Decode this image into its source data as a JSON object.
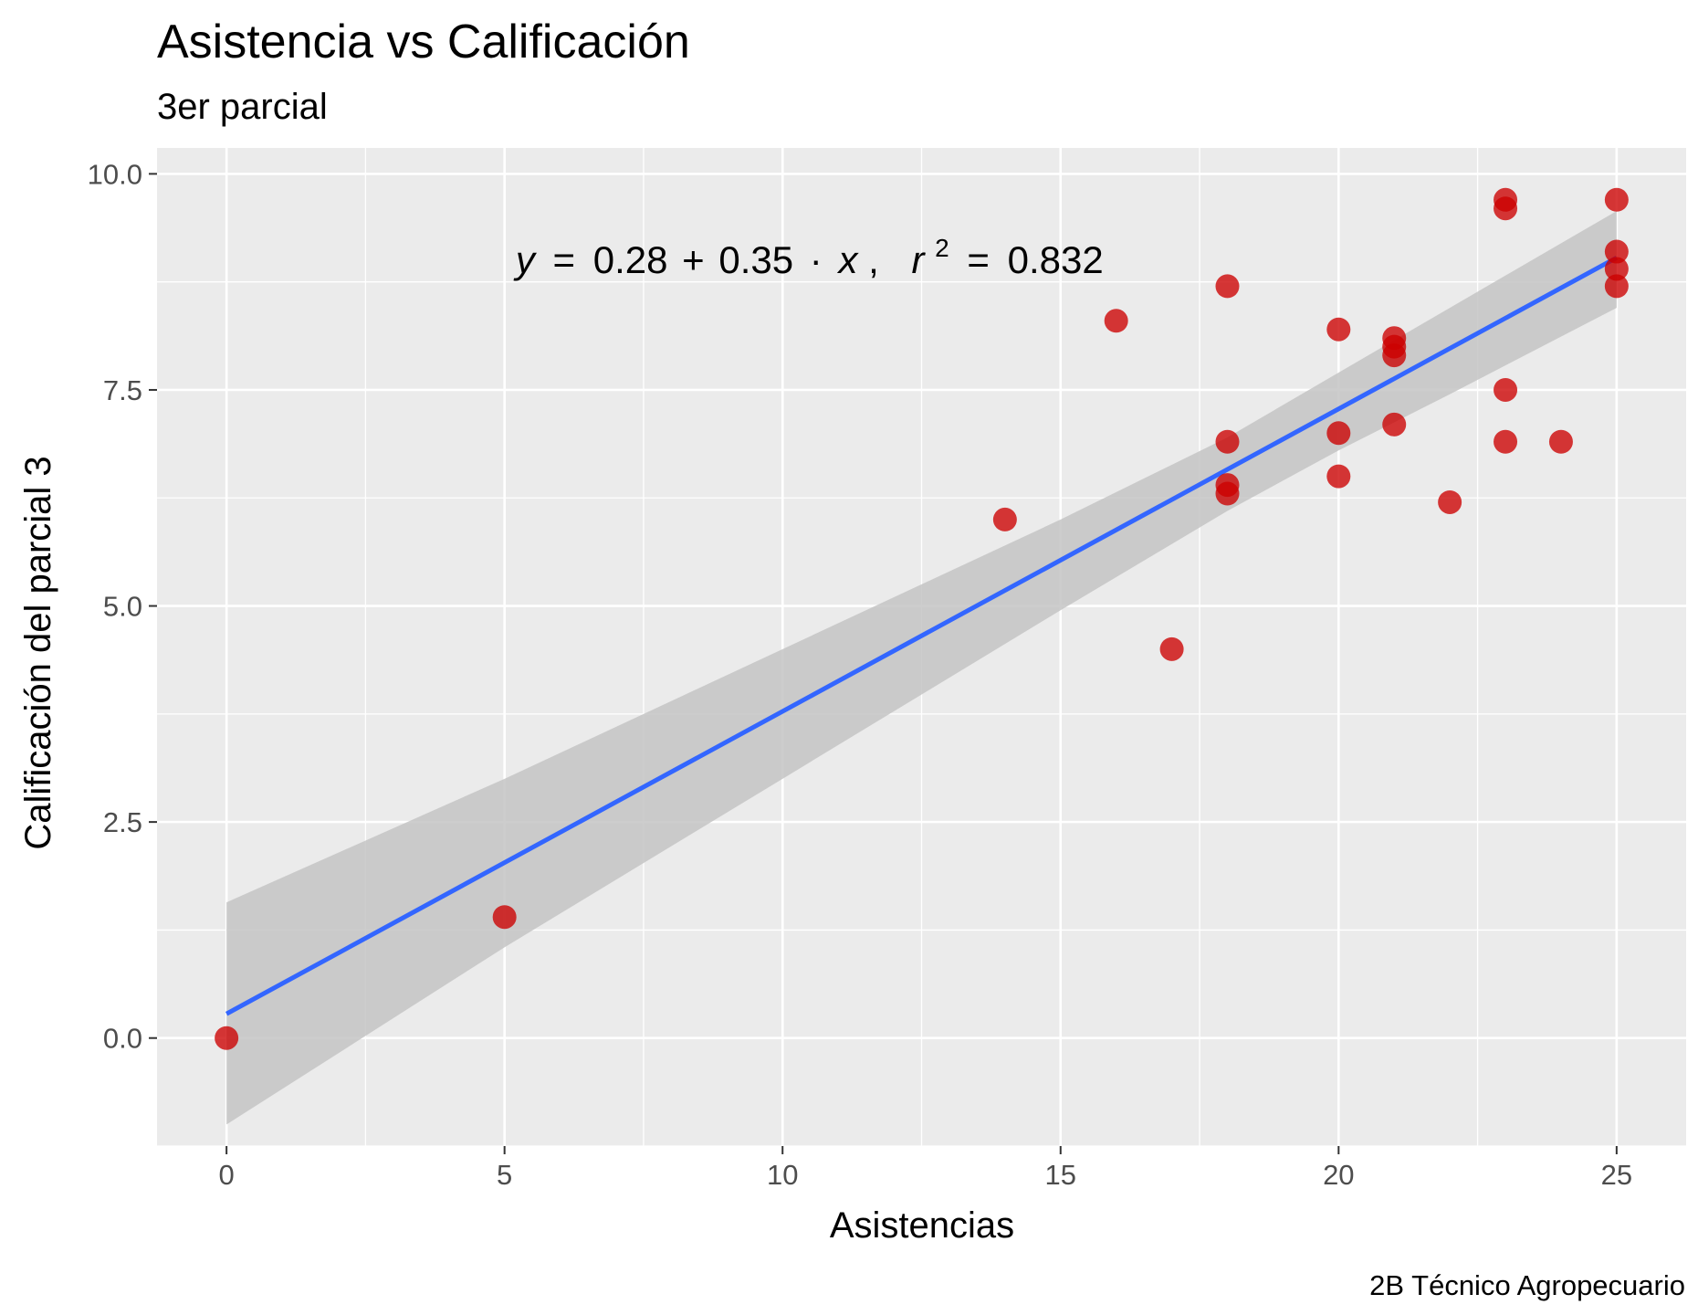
{
  "chart_data": {
    "type": "scatter",
    "title": "Asistencia vs Calificación",
    "subtitle": "3er parcial",
    "xlabel": "Asistencias",
    "ylabel": "Calificación del parcial 3",
    "caption": "2B Técnico Agropecuario",
    "xlim": [
      -1.25,
      26.25
    ],
    "ylim": [
      -1.25,
      10.3
    ],
    "x_ticks": [
      0,
      5,
      10,
      15,
      20,
      25
    ],
    "x_tick_labels": [
      "0",
      "5",
      "10",
      "15",
      "20",
      "25"
    ],
    "y_ticks": [
      0,
      2.5,
      5,
      7.5,
      10
    ],
    "y_tick_labels": [
      "0.0",
      "2.5",
      "5.0",
      "7.5",
      "10.0"
    ],
    "grid": true,
    "points": [
      {
        "x": 0,
        "y": 0.0
      },
      {
        "x": 5,
        "y": 1.4
      },
      {
        "x": 14,
        "y": 6.0
      },
      {
        "x": 16,
        "y": 8.3
      },
      {
        "x": 17,
        "y": 4.5
      },
      {
        "x": 18,
        "y": 8.7
      },
      {
        "x": 18,
        "y": 6.9
      },
      {
        "x": 18,
        "y": 6.4
      },
      {
        "x": 18,
        "y": 6.3
      },
      {
        "x": 20,
        "y": 8.2
      },
      {
        "x": 20,
        "y": 7.0
      },
      {
        "x": 20,
        "y": 6.5
      },
      {
        "x": 21,
        "y": 8.1
      },
      {
        "x": 21,
        "y": 8.0
      },
      {
        "x": 21,
        "y": 7.9
      },
      {
        "x": 21,
        "y": 7.1
      },
      {
        "x": 22,
        "y": 6.2
      },
      {
        "x": 23,
        "y": 9.7
      },
      {
        "x": 23,
        "y": 9.6
      },
      {
        "x": 23,
        "y": 7.5
      },
      {
        "x": 23,
        "y": 6.9
      },
      {
        "x": 24,
        "y": 6.9
      },
      {
        "x": 25,
        "y": 9.7
      },
      {
        "x": 25,
        "y": 9.1
      },
      {
        "x": 25,
        "y": 8.9
      },
      {
        "x": 25,
        "y": 8.7
      }
    ],
    "regression": {
      "intercept": 0.28,
      "slope": 0.35,
      "r2": 0.832,
      "x_range": [
        0,
        25
      ],
      "ci_band": [
        {
          "x": 0,
          "lo": -1.0,
          "hi": 1.57
        },
        {
          "x": 5,
          "lo": 1.05,
          "hi": 3.0
        },
        {
          "x": 10,
          "lo": 3.0,
          "hi": 4.5
        },
        {
          "x": 15,
          "lo": 4.95,
          "hi": 6.0
        },
        {
          "x": 18,
          "lo": 6.1,
          "hi": 6.95
        },
        {
          "x": 20,
          "lo": 6.8,
          "hi": 7.7
        },
        {
          "x": 22,
          "lo": 7.45,
          "hi": 8.45
        },
        {
          "x": 25,
          "lo": 8.45,
          "hi": 9.57
        }
      ]
    },
    "annotation": {
      "y_var": "y",
      "eq_sign": "=",
      "intercept_text": "0.28",
      "plus": "+",
      "slope_text": "0.35",
      "dot": "·",
      "x_var": "x",
      "comma": ",",
      "r_var": "r",
      "r_exp": "2",
      "r2_eq": "=",
      "r2_text": "0.832",
      "x": 5.2,
      "y": 8.85
    },
    "colors": {
      "panel": "#ebebeb",
      "grid_major": "#ffffff",
      "point": "#cc0000",
      "line": "#3366ff",
      "band": "#c4c4c4"
    }
  }
}
